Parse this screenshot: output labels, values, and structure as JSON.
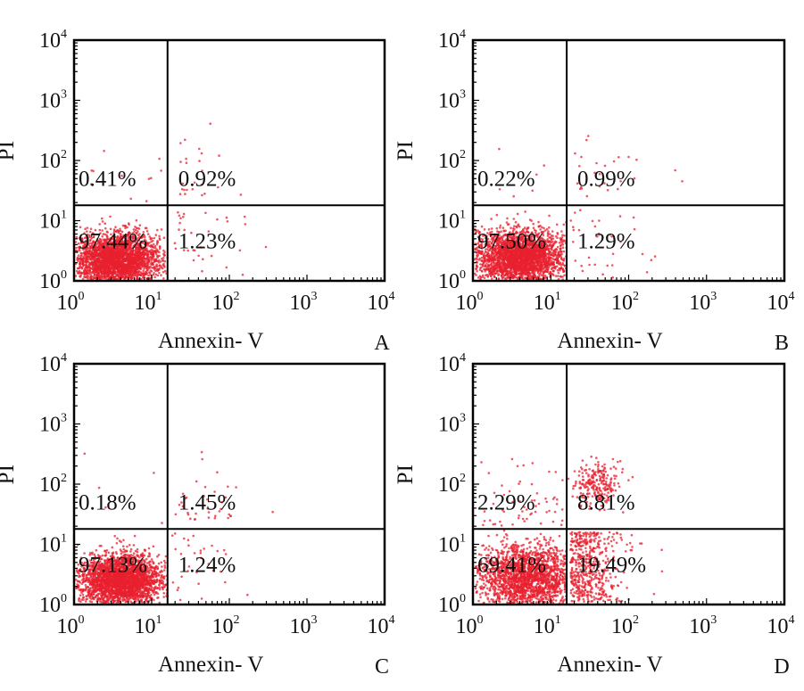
{
  "figure": {
    "panels": [
      "A",
      "B",
      "C",
      "D"
    ]
  },
  "colors": {
    "dots": "#e8202f",
    "axes": "#000000",
    "background": "#ffffff"
  },
  "chart_data": [
    {
      "panel": "A",
      "type": "scatter",
      "xlabel": "Annexin- V",
      "ylabel": "PI",
      "xscale": "log",
      "yscale": "log",
      "xlim": [
        1,
        10000
      ],
      "ylim": [
        1,
        10000
      ],
      "tick_base": "10",
      "tick_exponents": [
        "0",
        "1",
        "2",
        "3",
        "4"
      ],
      "gate": {
        "x": 16,
        "y": 18
      },
      "quadrants": {
        "upper_left": "0.41%",
        "upper_right": "0.92%",
        "lower_left": "97.44%",
        "lower_right": "1.23%"
      },
      "event_fractions": {
        "lower_left": 97.44,
        "lower_right": 1.23,
        "upper_left": 0.41,
        "upper_right": 0.92
      },
      "populations": [
        {
          "log_x_center": 0.55,
          "log_y_center": 0.35,
          "log_spread": [
            0.28,
            0.22
          ]
        }
      ]
    },
    {
      "panel": "B",
      "type": "scatter",
      "xlabel": "Annexin- V",
      "ylabel": "PI",
      "xscale": "log",
      "yscale": "log",
      "xlim": [
        1,
        10000
      ],
      "ylim": [
        1,
        10000
      ],
      "tick_base": "10",
      "tick_exponents": [
        "0",
        "1",
        "2",
        "3",
        "4"
      ],
      "gate": {
        "x": 16,
        "y": 18
      },
      "quadrants": {
        "upper_left": "0.22%",
        "upper_right": "0.99%",
        "lower_left": "97.50%",
        "lower_right": "1.29%"
      },
      "event_fractions": {
        "lower_left": 97.5,
        "lower_right": 1.29,
        "upper_left": 0.22,
        "upper_right": 0.99
      },
      "populations": [
        {
          "log_x_center": 0.6,
          "log_y_center": 0.4,
          "log_spread": [
            0.28,
            0.22
          ]
        }
      ]
    },
    {
      "panel": "C",
      "type": "scatter",
      "xlabel": "Annexin- V",
      "ylabel": "PI",
      "xscale": "log",
      "yscale": "log",
      "xlim": [
        1,
        10000
      ],
      "ylim": [
        1,
        10000
      ],
      "tick_base": "10",
      "tick_exponents": [
        "0",
        "1",
        "2",
        "3",
        "4"
      ],
      "gate": {
        "x": 16,
        "y": 18
      },
      "quadrants": {
        "upper_left": "0.18%",
        "upper_right": "1.45%",
        "lower_left": "97.13%",
        "lower_right": "1.24%"
      },
      "event_fractions": {
        "lower_left": 97.13,
        "lower_right": 1.24,
        "upper_left": 0.18,
        "upper_right": 1.45
      },
      "populations": [
        {
          "log_x_center": 0.6,
          "log_y_center": 0.4,
          "log_spread": [
            0.28,
            0.22
          ]
        }
      ]
    },
    {
      "panel": "D",
      "type": "scatter",
      "xlabel": "Annexin- V",
      "ylabel": "PI",
      "xscale": "log",
      "yscale": "log",
      "xlim": [
        1,
        10000
      ],
      "ylim": [
        1,
        10000
      ],
      "tick_base": "10",
      "tick_exponents": [
        "0",
        "1",
        "2",
        "3",
        "4"
      ],
      "gate": {
        "x": 16,
        "y": 18
      },
      "quadrants": {
        "upper_left": "2.29%",
        "upper_right": "8.81%",
        "lower_left": "69.41%",
        "lower_right": "19.49%"
      },
      "event_fractions": {
        "lower_left": 69.41,
        "lower_right": 19.49,
        "upper_left": 2.29,
        "upper_right": 8.81
      },
      "populations": [
        {
          "log_x_center": 0.7,
          "log_y_center": 0.45,
          "log_spread": [
            0.32,
            0.28
          ]
        },
        {
          "log_x_center": 1.6,
          "log_y_center": 2.0,
          "log_spread": [
            0.15,
            0.18
          ]
        }
      ]
    }
  ]
}
